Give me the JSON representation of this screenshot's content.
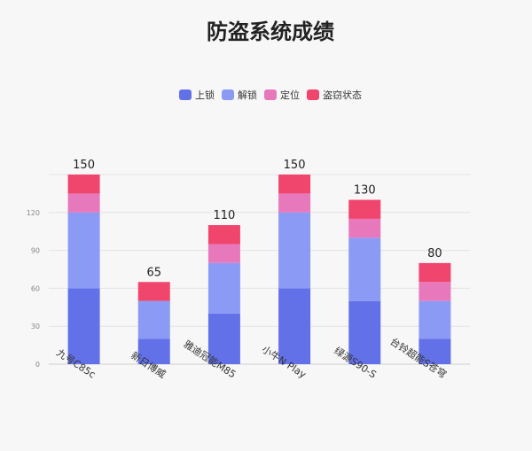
{
  "chart_data": {
    "type": "bar",
    "stacked": true,
    "title": "防盗系统成绩",
    "categories": [
      "九号C85c",
      "新日博威",
      "雅迪冠能M85",
      "小牛N Play",
      "绿源S90-S",
      "台铃超能S苍穹"
    ],
    "series": [
      {
        "name": "上锁",
        "color": "#6371e8",
        "values": [
          60,
          20,
          40,
          60,
          50,
          20
        ]
      },
      {
        "name": "解锁",
        "color": "#8b9bf5",
        "values": [
          60,
          30,
          40,
          60,
          50,
          30
        ]
      },
      {
        "name": "定位",
        "color": "#e878bc",
        "values": [
          15,
          0,
          15,
          15,
          15,
          15
        ]
      },
      {
        "name": "盗窃状态",
        "color": "#f0456c",
        "values": [
          15,
          15,
          15,
          15,
          15,
          15
        ]
      }
    ],
    "totals": [
      150,
      65,
      110,
      150,
      130,
      80
    ],
    "ylim": [
      0,
      150
    ],
    "yticks": [
      0,
      30,
      60,
      90,
      120
    ],
    "grid": true,
    "legend_position": "top-center",
    "xlabel": "",
    "ylabel": ""
  }
}
